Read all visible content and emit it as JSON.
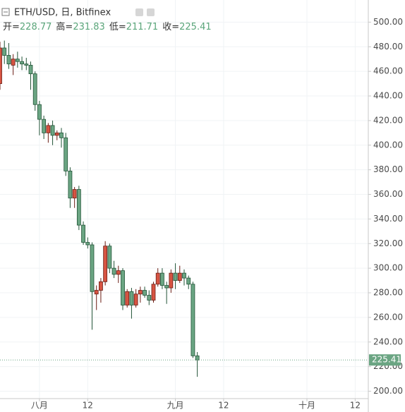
{
  "chart_data": {
    "type": "candlestick",
    "title": "ETH/USD, 日, Bitfinex",
    "ohlc_labels": [
      "开=",
      "高=",
      "低=",
      "收="
    ],
    "x": [
      "07-23",
      "07-24",
      "07-25",
      "07-26",
      "07-27",
      "07-28",
      "07-29",
      "07-30",
      "07-31",
      "08-01",
      "08-02",
      "08-03",
      "08-04",
      "08-05",
      "08-06",
      "08-07",
      "08-08",
      "08-09",
      "08-10",
      "08-11",
      "08-12",
      "08-13",
      "08-14",
      "08-15",
      "08-16",
      "08-17",
      "08-18",
      "08-19",
      "08-20",
      "08-21",
      "08-22",
      "08-23",
      "08-24",
      "08-25",
      "08-26",
      "08-27",
      "08-28",
      "08-29",
      "08-30",
      "08-31",
      "09-01",
      "09-02",
      "09-03",
      "09-04",
      "09-05",
      "09-06"
    ],
    "open": [
      450,
      479,
      473,
      465,
      470,
      468,
      466,
      465,
      458,
      433,
      421,
      410,
      416,
      408,
      410,
      406,
      379,
      357,
      364,
      335,
      321,
      319,
      279,
      282,
      289,
      318,
      300,
      295,
      298,
      270,
      281,
      270,
      279,
      282,
      278,
      274,
      287,
      296,
      286,
      284,
      296,
      290,
      296,
      292,
      287,
      228.77
    ],
    "high": [
      484,
      485,
      483,
      474,
      476,
      472,
      471,
      468,
      460,
      436,
      424,
      418,
      420,
      412,
      414,
      410,
      382,
      366,
      367,
      338,
      325,
      321,
      286,
      292,
      322,
      320,
      306,
      302,
      300,
      283,
      284,
      283,
      285,
      285,
      282,
      289,
      300,
      300,
      289,
      299,
      304,
      302,
      299,
      294,
      289,
      231.83
    ],
    "low": [
      445,
      466,
      462,
      457,
      463,
      461,
      461,
      445,
      428,
      408,
      405,
      402,
      400,
      404,
      398,
      375,
      349,
      349,
      331,
      319,
      316,
      250,
      266,
      272,
      286,
      296,
      292,
      288,
      266,
      268,
      259,
      268,
      272,
      276,
      270,
      272,
      285,
      283,
      271,
      280,
      283,
      288,
      286,
      283,
      227,
      211.71
    ],
    "close": [
      479,
      473,
      466,
      470,
      468,
      466,
      465,
      458,
      433,
      421,
      410,
      416,
      408,
      410,
      406,
      379,
      357,
      364,
      335,
      321,
      319,
      281,
      282,
      289,
      318,
      300,
      295,
      298,
      270,
      281,
      270,
      279,
      282,
      278,
      274,
      287,
      296,
      286,
      284,
      296,
      290,
      296,
      292,
      287,
      228.77,
      225.41
    ],
    "up_color": "#d75442",
    "up_edge": "#6b1d14",
    "down_color": "#6ba583",
    "down_edge": "#225437",
    "ylim": [
      194,
      518
    ],
    "yticks": [
      {
        "value": 200,
        "label": "200.00"
      },
      {
        "value": 220,
        "label": "220.00"
      },
      {
        "value": 240,
        "label": "240.00"
      },
      {
        "value": 260,
        "label": "260.00"
      },
      {
        "value": 280,
        "label": "280.00"
      },
      {
        "value": 300,
        "label": "300.00"
      },
      {
        "value": 320,
        "label": "320.00"
      },
      {
        "value": 340,
        "label": "340.00"
      },
      {
        "value": 360,
        "label": "360.00"
      },
      {
        "value": 380,
        "label": "380.00"
      },
      {
        "value": 400,
        "label": "400.00"
      },
      {
        "value": 420,
        "label": "420.00"
      },
      {
        "value": 440,
        "label": "440.00"
      },
      {
        "value": 460,
        "label": "460.00"
      },
      {
        "value": 480,
        "label": "480.00"
      },
      {
        "value": 500,
        "label": "500.00"
      }
    ],
    "xlim": [
      "07-23",
      "10-15"
    ],
    "xticks": [
      {
        "value": "08-01",
        "label": "八月"
      },
      {
        "value": "08-12",
        "label": "12"
      },
      {
        "value": "09-01",
        "label": "九月"
      },
      {
        "value": "09-12",
        "label": "12"
      },
      {
        "value": "10-01",
        "label": "十月"
      },
      {
        "value": "10-12",
        "label": "12"
      }
    ],
    "grid": true
  }
}
